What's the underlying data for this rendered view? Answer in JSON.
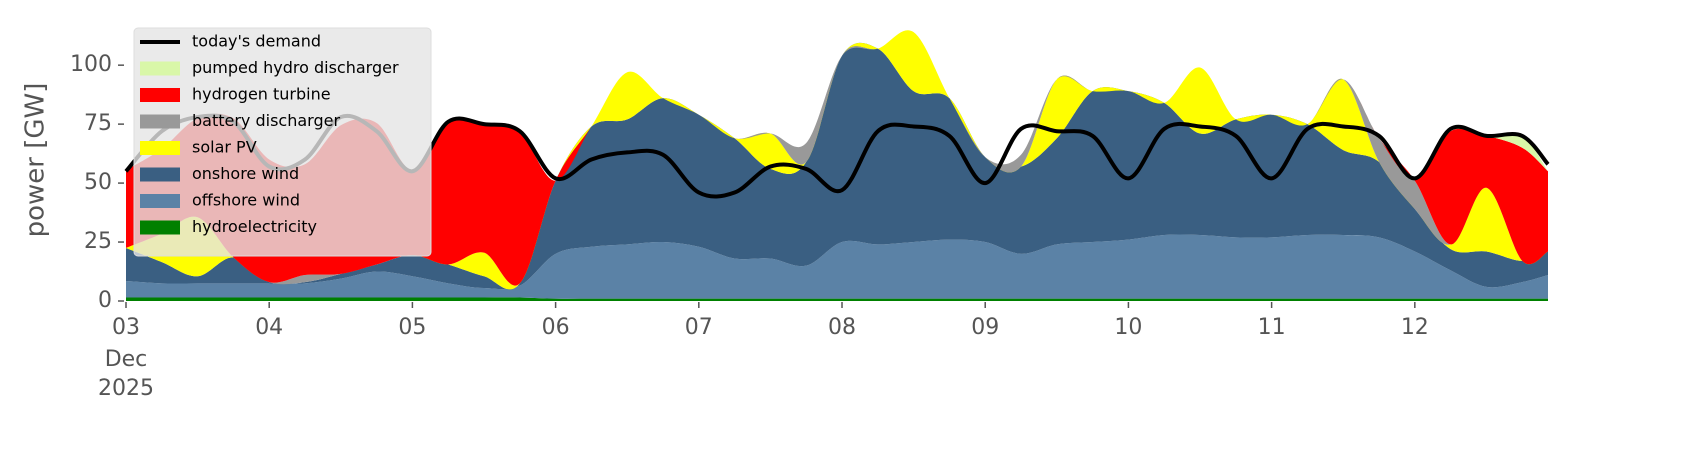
{
  "chart_data": {
    "type": "stacked_area",
    "ylabel": "power [GW]",
    "xtick_month": "Dec",
    "xtick_year": "2025",
    "xlim": [
      0,
      9.93
    ],
    "ylim": [
      0,
      120
    ],
    "yticks": [
      0,
      25,
      50,
      75,
      100
    ],
    "xticks": [
      {
        "value": 0,
        "label": "03"
      },
      {
        "value": 1,
        "label": "04"
      },
      {
        "value": 2,
        "label": "05"
      },
      {
        "value": 3,
        "label": "06"
      },
      {
        "value": 4,
        "label": "07"
      },
      {
        "value": 5,
        "label": "08"
      },
      {
        "value": 6,
        "label": "09"
      },
      {
        "value": 7,
        "label": "10"
      },
      {
        "value": 8,
        "label": "11"
      },
      {
        "value": 9,
        "label": "12"
      }
    ],
    "legend": "upper left",
    "x": [
      0,
      0.25,
      0.5,
      0.75,
      1,
      1.25,
      1.5,
      1.75,
      2,
      2.25,
      2.5,
      2.75,
      3,
      3.25,
      3.5,
      3.75,
      4,
      4.25,
      4.5,
      4.75,
      5,
      5.25,
      5.5,
      5.75,
      6,
      6.25,
      6.5,
      6.75,
      7,
      7.25,
      7.5,
      7.75,
      8,
      8.25,
      8.5,
      8.75,
      9,
      9.25,
      9.5,
      9.75,
      9.93
    ],
    "series": [
      {
        "name": "hydroelectricity",
        "color": "#008000",
        "values": [
          1.5,
          1.5,
          1.5,
          1.5,
          1.5,
          1.5,
          1.5,
          1.5,
          1.5,
          1.5,
          1.5,
          1.5,
          1,
          1,
          1,
          1,
          1,
          1,
          1,
          1,
          1,
          1,
          1,
          1,
          1,
          1,
          1,
          1,
          1,
          1,
          1,
          1,
          1,
          1,
          1,
          1,
          1,
          1,
          1,
          1,
          1
        ]
      },
      {
        "name": "offshore wind",
        "color": "#5b82a6",
        "values": [
          7,
          6,
          6,
          6,
          6,
          6,
          8,
          11,
          9,
          6,
          4,
          5,
          19,
          22,
          23,
          24,
          22,
          17,
          17,
          14,
          24,
          23,
          24,
          25,
          24,
          19,
          23,
          24,
          25,
          27,
          27,
          26,
          26,
          27,
          27,
          26,
          20,
          12,
          5,
          7,
          10
        ]
      },
      {
        "name": "onshore wind",
        "color": "#3a5f82",
        "values": [
          14,
          9,
          3,
          11,
          0.5,
          0.5,
          2,
          3,
          9,
          8,
          5,
          1,
          31,
          51,
          53,
          61,
          56,
          51,
          38,
          44,
          79,
          83,
          64,
          60,
          36,
          37,
          45,
          64,
          63,
          56,
          43,
          50,
          52,
          47,
          36,
          32,
          18,
          9,
          15,
          9,
          10
        ]
      },
      {
        "name": "solar PV",
        "color": "#ffff00",
        "values": [
          0,
          12,
          25,
          0,
          0,
          0,
          0,
          0,
          0,
          0,
          10,
          0,
          0,
          0,
          20,
          0,
          0,
          0,
          15,
          0,
          0,
          0,
          25,
          0,
          0,
          0,
          25,
          0,
          0,
          0,
          28,
          0,
          0,
          0,
          30,
          0,
          0,
          2,
          27,
          0,
          0
        ]
      },
      {
        "name": "battery discharger",
        "color": "#999999",
        "values": [
          0,
          0,
          0,
          0,
          0,
          3,
          0,
          0,
          0,
          0,
          0,
          0,
          0,
          0,
          0,
          0,
          0,
          0,
          0,
          8,
          0,
          0,
          0,
          0,
          0,
          5,
          0,
          0,
          0,
          0,
          0,
          0,
          0,
          0,
          0,
          10,
          12,
          0,
          0,
          0,
          0
        ]
      },
      {
        "name": "hydrogen turbine",
        "color": "#ff0000",
        "values": [
          33,
          36,
          42,
          59,
          52,
          47,
          63,
          60,
          36,
          60,
          55,
          64,
          0,
          0,
          0,
          0,
          0,
          0,
          0,
          0,
          0,
          0,
          0,
          0,
          0,
          0,
          0,
          0,
          0,
          0,
          0,
          0,
          0,
          0,
          0,
          0,
          1,
          48,
          22,
          48,
          34
        ]
      },
      {
        "name": "pumped hydro discharger",
        "color": "#d9f7a8",
        "values": [
          0,
          0,
          0,
          0,
          0,
          0,
          0,
          0,
          0,
          0,
          0,
          0,
          0,
          0,
          0,
          0,
          0,
          0,
          0,
          0,
          0,
          0,
          0,
          0,
          0,
          0,
          0,
          0,
          0,
          0,
          0,
          0,
          0,
          0,
          0,
          0,
          0,
          0,
          0,
          5,
          0
        ]
      }
    ],
    "line_series": {
      "name": "today's demand",
      "color": "#000000",
      "values": [
        55,
        72,
        78,
        76,
        57,
        60,
        78,
        72,
        55,
        76,
        75,
        72,
        52,
        60,
        63,
        62,
        46,
        46,
        57,
        56,
        47,
        72,
        74,
        70,
        50,
        73,
        72,
        70,
        52,
        73,
        74,
        70,
        52,
        73,
        74,
        70,
        52,
        73,
        70,
        70,
        58
      ]
    }
  }
}
